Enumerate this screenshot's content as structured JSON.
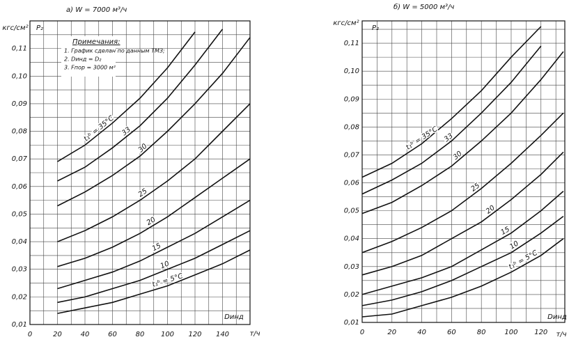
{
  "chart_data": [
    {
      "type": "line",
      "title": "а) W = 7000 м³/ч",
      "y_unit": "кгс/см²",
      "y_label": "P₂",
      "x_label": "Dинд",
      "x_unit": "т/ч",
      "notes": {
        "title": "Примечания:",
        "items": [
          "1. График сделан по данным ТМЗ;",
          "2. Dинд = D₂",
          "3. Fпор = 3000 м²"
        ]
      },
      "xlim": [
        0,
        160
      ],
      "ylim": [
        0.01,
        0.12
      ],
      "xticks": [
        0,
        20,
        40,
        60,
        80,
        100,
        120,
        140
      ],
      "yticks": [
        {
          "value": 0.01,
          "label": "0,01"
        },
        {
          "value": 0.02,
          "label": "0,02"
        },
        {
          "value": 0.03,
          "label": "0,03"
        },
        {
          "value": 0.04,
          "label": "0,04"
        },
        {
          "value": 0.05,
          "label": "0,05"
        },
        {
          "value": 0.06,
          "label": "0,06"
        },
        {
          "value": 0.07,
          "label": "0,07"
        },
        {
          "value": 0.08,
          "label": "0,08"
        },
        {
          "value": 0.09,
          "label": "0,09"
        },
        {
          "value": 0.1,
          "label": "0,10"
        },
        {
          "value": 0.11,
          "label": "0,11"
        }
      ],
      "xminor": [
        10,
        30,
        50,
        70,
        90,
        110,
        130,
        150,
        160
      ],
      "yminor": [
        0.015,
        0.025,
        0.035,
        0.045,
        0.055,
        0.065,
        0.075,
        0.085,
        0.095,
        0.105,
        0.115
      ],
      "grid": true,
      "color": "#111111",
      "x": [
        20,
        40,
        60,
        80,
        100,
        120,
        140,
        160
      ],
      "series": [
        {
          "name": "t₁ᵇ = 35°C",
          "values": [
            0.069,
            0.075,
            0.083,
            0.092,
            0.103,
            0.116,
            null,
            null
          ]
        },
        {
          "name": "33",
          "values": [
            0.062,
            0.067,
            0.074,
            0.082,
            0.092,
            0.104,
            0.117,
            null
          ]
        },
        {
          "name": "30",
          "values": [
            0.053,
            0.058,
            0.064,
            0.071,
            0.08,
            0.09,
            0.101,
            0.114
          ]
        },
        {
          "name": "25",
          "values": [
            0.04,
            0.044,
            0.049,
            0.055,
            0.062,
            0.07,
            0.08,
            0.09
          ]
        },
        {
          "name": "20",
          "values": [
            0.031,
            0.034,
            0.038,
            0.043,
            0.049,
            0.056,
            0.063,
            0.07
          ]
        },
        {
          "name": "15",
          "values": [
            0.023,
            0.026,
            0.029,
            0.033,
            0.038,
            0.043,
            0.049,
            0.055
          ]
        },
        {
          "name": "10",
          "values": [
            0.018,
            0.02,
            0.023,
            0.026,
            0.03,
            0.034,
            0.039,
            0.044
          ]
        },
        {
          "name": "t₁ᵇ = 5°C",
          "values": [
            0.014,
            0.016,
            0.018,
            0.021,
            0.024,
            0.028,
            0.032,
            0.037
          ]
        }
      ]
    },
    {
      "type": "line",
      "title": "б) W = 5000 м³/ч",
      "y_unit": "кгс/см²",
      "y_label": "P₂",
      "x_label": "Dинд",
      "x_unit": "т/ч",
      "xlim": [
        0,
        136
      ],
      "ylim": [
        0.01,
        0.118
      ],
      "xticks": [
        0,
        20,
        40,
        60,
        80,
        100,
        120
      ],
      "yticks": [
        {
          "value": 0.01,
          "label": "0,01"
        },
        {
          "value": 0.02,
          "label": "0,02"
        },
        {
          "value": 0.03,
          "label": "0,03"
        },
        {
          "value": 0.04,
          "label": "0,04"
        },
        {
          "value": 0.05,
          "label": "0,05"
        },
        {
          "value": 0.06,
          "label": "0,06"
        },
        {
          "value": 0.07,
          "label": "0,07"
        },
        {
          "value": 0.08,
          "label": "0,08"
        },
        {
          "value": 0.09,
          "label": "0,09"
        },
        {
          "value": 0.1,
          "label": "0,10"
        },
        {
          "value": 0.11,
          "label": "0,11"
        }
      ],
      "xminor": [
        10,
        30,
        50,
        70,
        90,
        110,
        130
      ],
      "yminor": [
        0.015,
        0.025,
        0.035,
        0.045,
        0.055,
        0.065,
        0.075,
        0.085,
        0.095,
        0.105,
        0.115
      ],
      "grid": true,
      "color": "#111111",
      "x": [
        0,
        20,
        40,
        60,
        80,
        100,
        120,
        135
      ],
      "series": [
        {
          "name": "t₁ᵇ = 35°C",
          "values": [
            0.062,
            0.067,
            0.074,
            0.083,
            0.093,
            0.105,
            0.116,
            null
          ]
        },
        {
          "name": "33",
          "values": [
            0.056,
            0.061,
            0.067,
            0.075,
            0.085,
            0.096,
            0.109,
            null
          ]
        },
        {
          "name": "30",
          "values": [
            0.049,
            0.053,
            0.059,
            0.066,
            0.075,
            0.085,
            0.097,
            0.107
          ]
        },
        {
          "name": "25",
          "values": [
            0.035,
            0.039,
            0.044,
            0.05,
            0.058,
            0.067,
            0.077,
            0.085
          ]
        },
        {
          "name": "20",
          "values": [
            0.027,
            0.03,
            0.034,
            0.04,
            0.046,
            0.054,
            0.063,
            0.071
          ]
        },
        {
          "name": "15",
          "values": [
            0.02,
            0.023,
            0.026,
            0.03,
            0.036,
            0.042,
            0.05,
            0.057
          ]
        },
        {
          "name": "10",
          "values": [
            0.016,
            0.018,
            0.021,
            0.025,
            0.03,
            0.035,
            0.042,
            0.048
          ]
        },
        {
          "name": "t₁ᵇ = 5°C",
          "values": [
            0.012,
            0.013,
            0.016,
            0.019,
            0.023,
            0.028,
            0.034,
            0.04
          ]
        }
      ]
    }
  ]
}
